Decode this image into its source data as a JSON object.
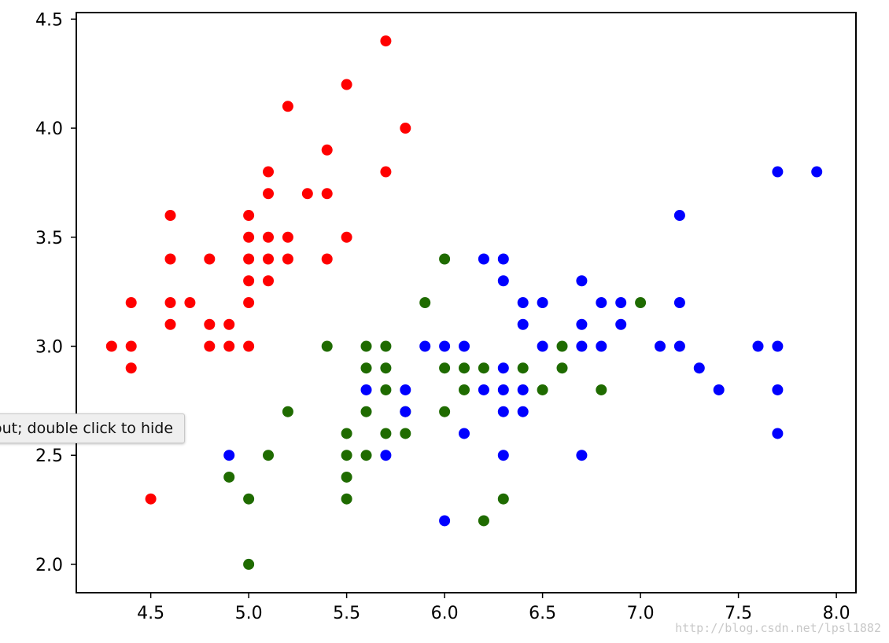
{
  "tooltip": {
    "text": "out; double click to hide"
  },
  "watermark": {
    "text": "http://blog.csdn.net/lpsl1882"
  },
  "colors": {
    "setosa": "#ff0000",
    "versicolor": "#1f6b00",
    "virginica": "#0000ff",
    "axis": "#000000"
  },
  "chart_data": {
    "type": "scatter",
    "title": "",
    "xlabel": "",
    "ylabel": "",
    "xlim": [
      4.12,
      8.1
    ],
    "ylim": [
      1.87,
      4.53
    ],
    "xticks": [
      "4.5",
      "5.0",
      "5.5",
      "6.0",
      "6.5",
      "7.0",
      "7.5",
      "8.0"
    ],
    "yticks": [
      "2.0",
      "2.5",
      "3.0",
      "3.5",
      "4.0",
      "4.5"
    ],
    "grid": false,
    "series": [
      {
        "color": "#ff0000",
        "points": [
          [
            5.7,
            4.4
          ],
          [
            5.5,
            4.2
          ],
          [
            5.2,
            4.1
          ],
          [
            5.8,
            4.0
          ],
          [
            5.4,
            3.9
          ],
          [
            5.1,
            3.8
          ],
          [
            5.7,
            3.8
          ],
          [
            5.1,
            3.7
          ],
          [
            5.3,
            3.7
          ],
          [
            5.4,
            3.7
          ],
          [
            4.6,
            3.6
          ],
          [
            5.0,
            3.6
          ],
          [
            5.0,
            3.5
          ],
          [
            5.1,
            3.5
          ],
          [
            5.2,
            3.5
          ],
          [
            5.5,
            3.5
          ],
          [
            4.6,
            3.4
          ],
          [
            4.8,
            3.4
          ],
          [
            5.0,
            3.4
          ],
          [
            5.1,
            3.4
          ],
          [
            5.2,
            3.4
          ],
          [
            5.4,
            3.4
          ],
          [
            5.0,
            3.3
          ],
          [
            5.1,
            3.3
          ],
          [
            4.4,
            3.2
          ],
          [
            4.6,
            3.2
          ],
          [
            4.7,
            3.2
          ],
          [
            5.0,
            3.2
          ],
          [
            4.6,
            3.1
          ],
          [
            4.8,
            3.1
          ],
          [
            4.9,
            3.1
          ],
          [
            4.3,
            3.0
          ],
          [
            4.4,
            3.0
          ],
          [
            4.8,
            3.0
          ],
          [
            4.9,
            3.0
          ],
          [
            5.0,
            3.0
          ],
          [
            4.4,
            2.9
          ],
          [
            4.5,
            2.3
          ]
        ]
      },
      {
        "color": "#1f6b00",
        "points": [
          [
            6.0,
            3.4
          ],
          [
            5.9,
            3.2
          ],
          [
            7.0,
            3.2
          ],
          [
            5.4,
            3.0
          ],
          [
            5.6,
            3.0
          ],
          [
            5.7,
            3.0
          ],
          [
            6.6,
            3.0
          ],
          [
            5.6,
            2.9
          ],
          [
            5.7,
            2.9
          ],
          [
            6.0,
            2.9
          ],
          [
            6.1,
            2.9
          ],
          [
            6.2,
            2.9
          ],
          [
            6.4,
            2.9
          ],
          [
            6.6,
            2.9
          ],
          [
            5.7,
            2.8
          ],
          [
            6.1,
            2.8
          ],
          [
            6.5,
            2.8
          ],
          [
            6.8,
            2.8
          ],
          [
            5.2,
            2.7
          ],
          [
            5.6,
            2.7
          ],
          [
            5.8,
            2.7
          ],
          [
            6.0,
            2.7
          ],
          [
            5.5,
            2.6
          ],
          [
            5.7,
            2.6
          ],
          [
            5.8,
            2.6
          ],
          [
            5.1,
            2.5
          ],
          [
            5.5,
            2.5
          ],
          [
            5.6,
            2.5
          ],
          [
            4.9,
            2.4
          ],
          [
            5.5,
            2.4
          ],
          [
            5.0,
            2.3
          ],
          [
            5.5,
            2.3
          ],
          [
            6.3,
            2.3
          ],
          [
            6.2,
            2.2
          ],
          [
            5.0,
            2.0
          ]
        ]
      },
      {
        "color": "#0000ff",
        "points": [
          [
            7.7,
            3.8
          ],
          [
            7.9,
            3.8
          ],
          [
            7.2,
            3.6
          ],
          [
            6.2,
            3.4
          ],
          [
            6.3,
            3.4
          ],
          [
            6.3,
            3.3
          ],
          [
            6.7,
            3.3
          ],
          [
            6.4,
            3.2
          ],
          [
            6.5,
            3.2
          ],
          [
            6.8,
            3.2
          ],
          [
            6.9,
            3.2
          ],
          [
            7.2,
            3.2
          ],
          [
            6.4,
            3.1
          ],
          [
            6.7,
            3.1
          ],
          [
            6.9,
            3.1
          ],
          [
            5.9,
            3.0
          ],
          [
            6.0,
            3.0
          ],
          [
            6.1,
            3.0
          ],
          [
            6.5,
            3.0
          ],
          [
            6.7,
            3.0
          ],
          [
            6.8,
            3.0
          ],
          [
            7.1,
            3.0
          ],
          [
            7.2,
            3.0
          ],
          [
            7.6,
            3.0
          ],
          [
            7.7,
            3.0
          ],
          [
            6.3,
            2.9
          ],
          [
            7.3,
            2.9
          ],
          [
            5.6,
            2.8
          ],
          [
            5.8,
            2.8
          ],
          [
            6.2,
            2.8
          ],
          [
            6.3,
            2.8
          ],
          [
            6.4,
            2.8
          ],
          [
            7.4,
            2.8
          ],
          [
            7.7,
            2.8
          ],
          [
            5.8,
            2.7
          ],
          [
            6.3,
            2.7
          ],
          [
            6.4,
            2.7
          ],
          [
            6.1,
            2.6
          ],
          [
            7.7,
            2.6
          ],
          [
            4.9,
            2.5
          ],
          [
            5.7,
            2.5
          ],
          [
            6.3,
            2.5
          ],
          [
            6.7,
            2.5
          ],
          [
            6.0,
            2.2
          ]
        ]
      }
    ]
  }
}
